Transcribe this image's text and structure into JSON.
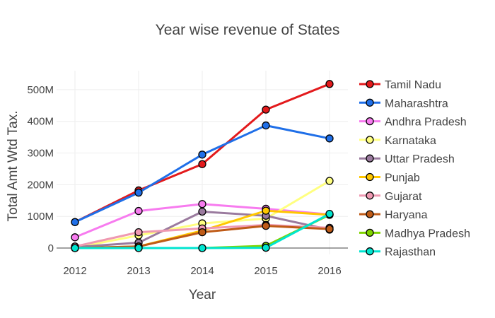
{
  "chart_data": {
    "type": "line",
    "title": "Year wise revenue of States",
    "xlabel": "Year",
    "ylabel": "Total Amt Wtd Tax.",
    "x": [
      2012,
      2013,
      2014,
      2015,
      2016
    ],
    "x_tick_labels": [
      "2012",
      "2013",
      "2014",
      "2015",
      "2016"
    ],
    "ylim": [
      -20000000,
      560000000
    ],
    "y_ticks": [
      0,
      100000000,
      200000000,
      300000000,
      400000000,
      500000000
    ],
    "y_tick_labels": [
      "0",
      "100M",
      "200M",
      "300M",
      "400M",
      "500M"
    ],
    "grid": true,
    "legend_position": "right",
    "series": [
      {
        "name": "Tamil Nadu",
        "color": "#e31a1c",
        "values": [
          82000000,
          182000000,
          265000000,
          437000000,
          518000000
        ]
      },
      {
        "name": "Maharashtra",
        "color": "#1f6fe8",
        "values": [
          82000000,
          175000000,
          295000000,
          387000000,
          346000000
        ]
      },
      {
        "name": "Andhra Pradesh",
        "color": "#f77bef",
        "values": [
          34000000,
          117000000,
          139000000,
          124000000,
          106000000
        ]
      },
      {
        "name": "Karnataka",
        "color": "#ffff80",
        "values": [
          1000000,
          40000000,
          78000000,
          93000000,
          212000000
        ]
      },
      {
        "name": "Uttar Pradesh",
        "color": "#9a7a9e",
        "values": [
          3000000,
          17000000,
          115000000,
          102000000,
          58000000
        ]
      },
      {
        "name": "Punjab",
        "color": "#ffc700",
        "values": [
          0,
          5000000,
          55000000,
          118000000,
          105000000
        ]
      },
      {
        "name": "Gujarat",
        "color": "#ef99b2",
        "values": [
          5000000,
          50000000,
          62000000,
          73000000,
          64000000
        ]
      },
      {
        "name": "Haryana",
        "color": "#bf5b17",
        "values": [
          0,
          5000000,
          50000000,
          70000000,
          60000000
        ]
      },
      {
        "name": "Madhya Pradesh",
        "color": "#7fd400",
        "values": [
          0,
          0,
          0,
          7000000,
          105000000
        ]
      },
      {
        "name": "Rajasthan",
        "color": "#00e5d0",
        "values": [
          0,
          0,
          0,
          1000000,
          108000000
        ]
      }
    ]
  }
}
